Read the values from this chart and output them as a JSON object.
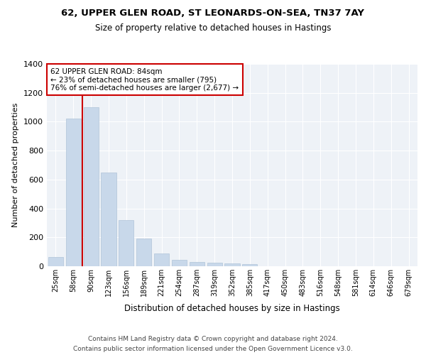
{
  "title1": "62, UPPER GLEN ROAD, ST LEONARDS-ON-SEA, TN37 7AY",
  "title2": "Size of property relative to detached houses in Hastings",
  "xlabel": "Distribution of detached houses by size in Hastings",
  "ylabel": "Number of detached properties",
  "categories": [
    "25sqm",
    "58sqm",
    "90sqm",
    "123sqm",
    "156sqm",
    "189sqm",
    "221sqm",
    "254sqm",
    "287sqm",
    "319sqm",
    "352sqm",
    "385sqm",
    "417sqm",
    "450sqm",
    "483sqm",
    "516sqm",
    "548sqm",
    "581sqm",
    "614sqm",
    "646sqm",
    "679sqm"
  ],
  "values": [
    65,
    1020,
    1100,
    650,
    320,
    190,
    90,
    45,
    30,
    25,
    20,
    15,
    0,
    0,
    0,
    0,
    0,
    0,
    0,
    0,
    0
  ],
  "bar_color": "#c8d8ea",
  "bar_edgecolor": "#b0c4d8",
  "property_line_x": 1.5,
  "property_line_color": "#cc0000",
  "annotation_text": "62 UPPER GLEN ROAD: 84sqm\n← 23% of detached houses are smaller (795)\n76% of semi-detached houses are larger (2,677) →",
  "annotation_box_color": "#cc0000",
  "ylim": [
    0,
    1400
  ],
  "background_color": "#eef2f7",
  "grid_color": "#ffffff",
  "footer_text1": "Contains HM Land Registry data © Crown copyright and database right 2024.",
  "footer_text2": "Contains public sector information licensed under the Open Government Licence v3.0."
}
